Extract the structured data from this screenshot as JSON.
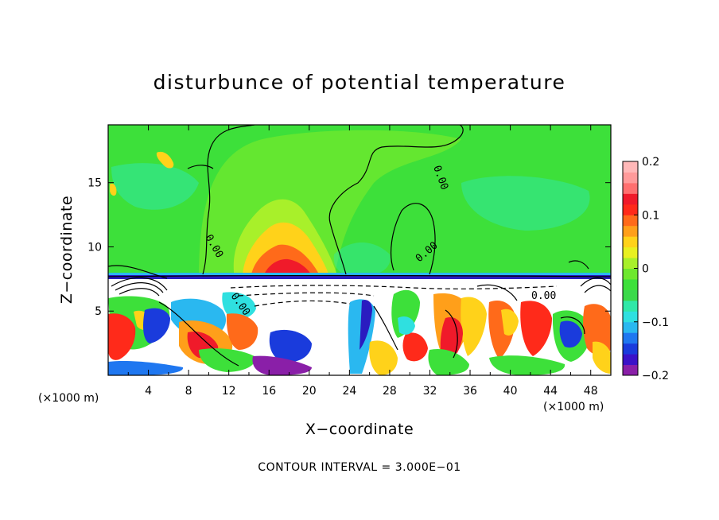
{
  "chart_data": {
    "type": "heatmap",
    "title": "disturbunce of potential temperature",
    "xlabel": "X−coordinate",
    "ylabel": "Z−coordinate",
    "x_unit_label": "(×1000 m)",
    "x_unit_label_right": "(×1000 m)",
    "x_ticks": [
      4,
      8,
      12,
      16,
      20,
      24,
      28,
      32,
      36,
      40,
      44,
      48
    ],
    "y_ticks": [
      5,
      10,
      15
    ],
    "xlim": [
      0,
      50
    ],
    "ylim": [
      0,
      19.5
    ],
    "colorbar": {
      "ticks": [
        {
          "value": 0.2,
          "label": "0.2"
        },
        {
          "value": 0.1,
          "label": "0.1"
        },
        {
          "value": 0.0,
          "label": "0"
        },
        {
          "value": -0.1,
          "label": "−0.1"
        },
        {
          "value": -0.2,
          "label": "−0.2"
        }
      ],
      "range": [
        -0.2,
        0.2
      ],
      "colors": [
        "#8a1fa8",
        "#3b12c8",
        "#1a3bdc",
        "#1f77f0",
        "#2ab8f0",
        "#2fe0e0",
        "#2fe8a8",
        "#3ad94a",
        "#3de03a",
        "#6ee82e",
        "#a8f02a",
        "#e8f020",
        "#ffd21a",
        "#ff9f1a",
        "#ff6a1a",
        "#ff2a1a",
        "#f01a2a",
        "#ff6f6f",
        "#ff9a9a",
        "#ffb8b8"
      ]
    },
    "contour_labels": [
      "0.00",
      "0.00",
      "0.00",
      "0.00",
      "0.00"
    ],
    "contour_interval_text": "CONTOUR INTERVAL = 3.000E−01"
  }
}
